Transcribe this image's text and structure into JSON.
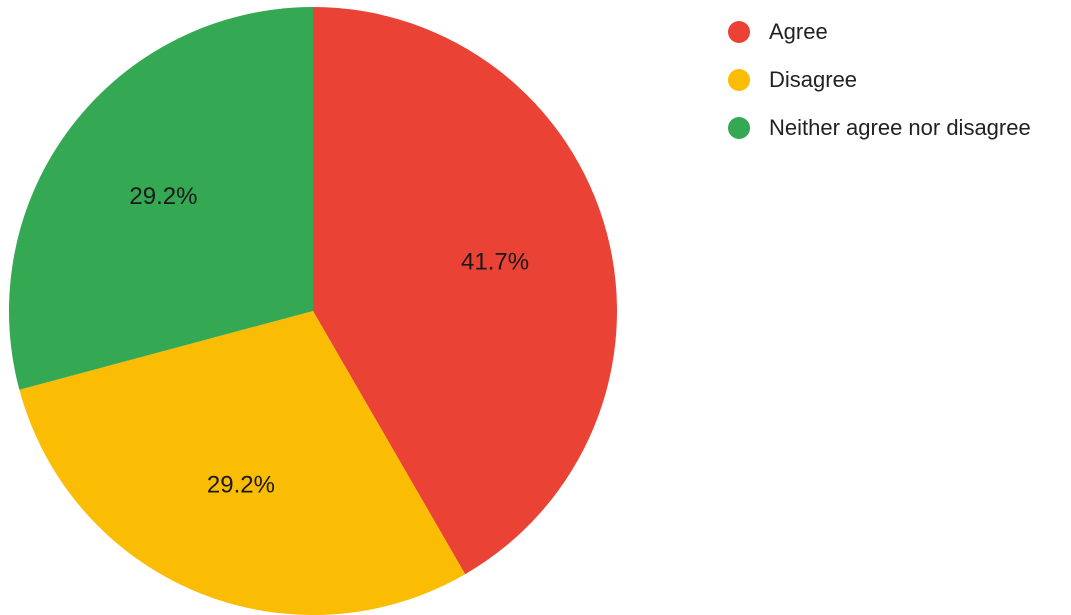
{
  "chart_data": {
    "type": "pie",
    "title": "",
    "categories": [
      "Agree",
      "Disagree",
      "Neither agree nor disagree"
    ],
    "values": [
      41.7,
      29.2,
      29.2
    ],
    "value_labels": [
      "41.7%",
      "29.2%",
      "29.2%"
    ],
    "colors": [
      "#EA4335",
      "#FBBC04",
      "#34A853"
    ],
    "start_angle": "12 o'clock, clockwise",
    "legend": "top-right"
  }
}
